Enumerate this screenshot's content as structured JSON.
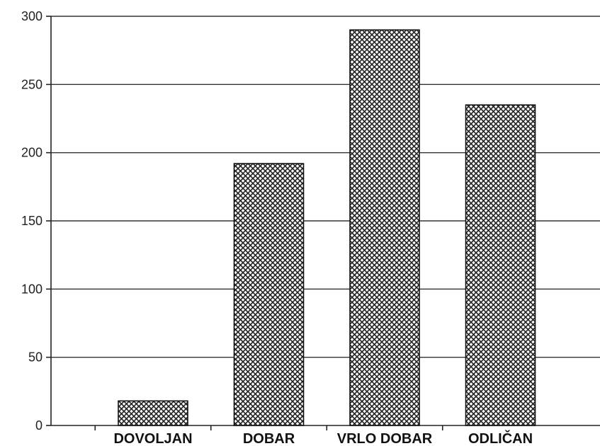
{
  "chart_data": {
    "type": "bar",
    "title": "",
    "xlabel": "",
    "ylabel": "",
    "categories": [
      "DOVOLJAN",
      "DOBAR",
      "VRLO DOBAR",
      "ODLIČAN"
    ],
    "values": [
      18,
      192,
      290,
      235
    ],
    "ylim": [
      0,
      300
    ],
    "yticks": [
      0,
      50,
      100,
      150,
      200,
      250,
      300
    ],
    "grid": "horizontal",
    "bar_fill": "crosshatch",
    "colors": {
      "bar_stroke": "#111111",
      "hatch": "#222222",
      "grid": "#333333"
    }
  }
}
